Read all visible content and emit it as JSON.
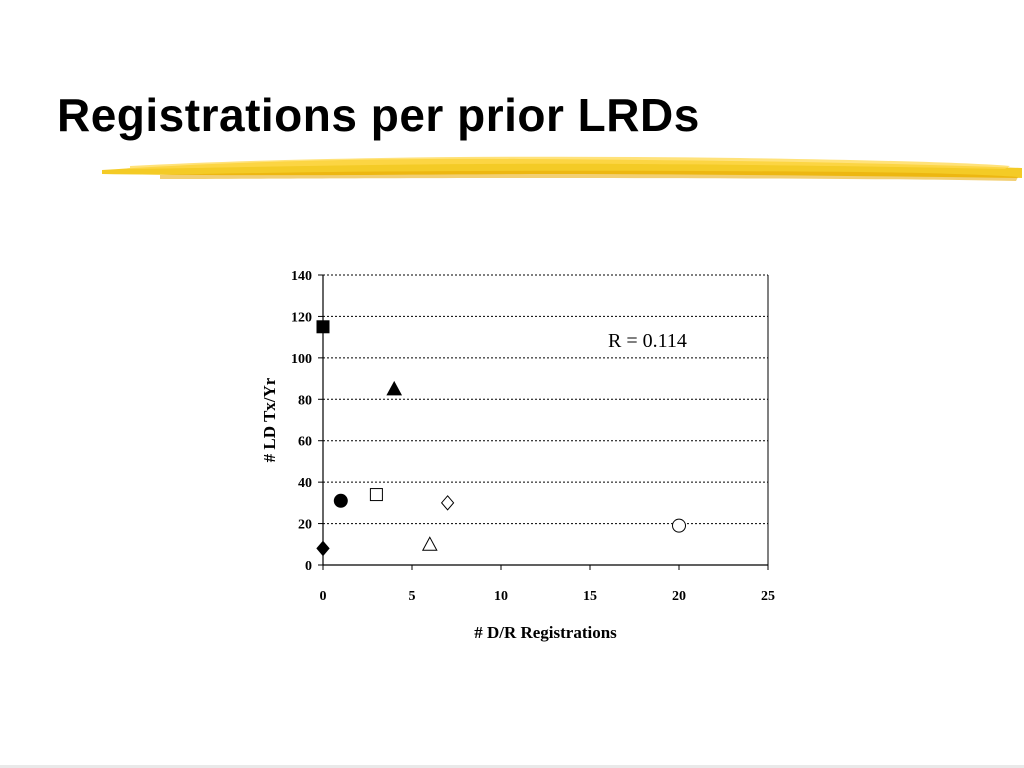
{
  "slide": {
    "title": "Registrations per prior LRDs",
    "accent_color": "#f2c200"
  },
  "chart_data": {
    "type": "scatter",
    "title": "",
    "xlabel": "# D/R Registrations",
    "ylabel": "# LD Tx/Yr",
    "xlim": [
      0,
      25
    ],
    "ylim": [
      0,
      140
    ],
    "x_ticks": [
      0,
      5,
      10,
      15,
      20,
      25
    ],
    "y_ticks": [
      0,
      20,
      40,
      60,
      80,
      100,
      120,
      140
    ],
    "grid": "horizontal dashed",
    "annotation": "R = 0.114",
    "points": [
      {
        "x": 0,
        "y": 115,
        "marker": "square-filled"
      },
      {
        "x": 4,
        "y": 85,
        "marker": "triangle-filled"
      },
      {
        "x": 1,
        "y": 31,
        "marker": "circle-filled"
      },
      {
        "x": 3,
        "y": 34,
        "marker": "square-open"
      },
      {
        "x": 7,
        "y": 30,
        "marker": "diamond-open"
      },
      {
        "x": 20,
        "y": 19,
        "marker": "circle-open"
      },
      {
        "x": 6,
        "y": 10,
        "marker": "triangle-open"
      },
      {
        "x": 0,
        "y": 8,
        "marker": "diamond-filled"
      }
    ]
  }
}
